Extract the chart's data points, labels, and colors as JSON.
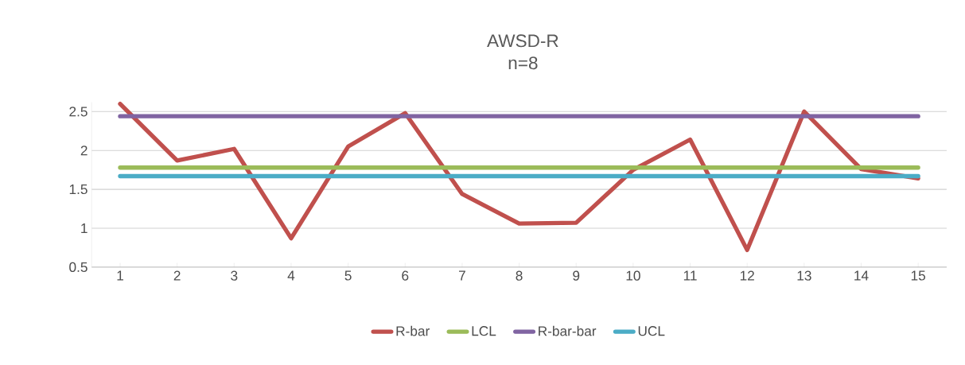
{
  "chart_data": {
    "type": "line",
    "title": "AWSD-R",
    "subtitle": "n=8",
    "categories": [
      "1",
      "2",
      "3",
      "4",
      "5",
      "6",
      "7",
      "8",
      "9",
      "10",
      "11",
      "12",
      "13",
      "14",
      "15"
    ],
    "series": [
      {
        "name": "R-bar",
        "color": "#c0504d",
        "values": [
          2.6,
          1.87,
          2.02,
          0.87,
          2.05,
          2.48,
          1.44,
          1.06,
          1.07,
          1.75,
          2.14,
          0.72,
          2.5,
          1.76,
          1.64
        ]
      },
      {
        "name": "LCL",
        "color": "#9bbb59",
        "values": [
          1.78,
          1.78,
          1.78,
          1.78,
          1.78,
          1.78,
          1.78,
          1.78,
          1.78,
          1.78,
          1.78,
          1.78,
          1.78,
          1.78,
          1.78
        ]
      },
      {
        "name": "R-bar-bar",
        "color": "#8064a2",
        "values": [
          2.44,
          2.44,
          2.44,
          2.44,
          2.44,
          2.44,
          2.44,
          2.44,
          2.44,
          2.44,
          2.44,
          2.44,
          2.44,
          2.44,
          2.44
        ]
      },
      {
        "name": "UCL",
        "color": "#4bacc6",
        "values": [
          1.67,
          1.67,
          1.67,
          1.67,
          1.67,
          1.67,
          1.67,
          1.67,
          1.67,
          1.67,
          1.67,
          1.67,
          1.67,
          1.67,
          1.67
        ]
      }
    ],
    "ylim": [
      0.5,
      2.62
    ],
    "yticks": [
      0.5,
      1,
      1.5,
      2,
      2.5
    ],
    "grid": "y",
    "legend": "bottom",
    "marker": "none",
    "line_style": "solid"
  }
}
